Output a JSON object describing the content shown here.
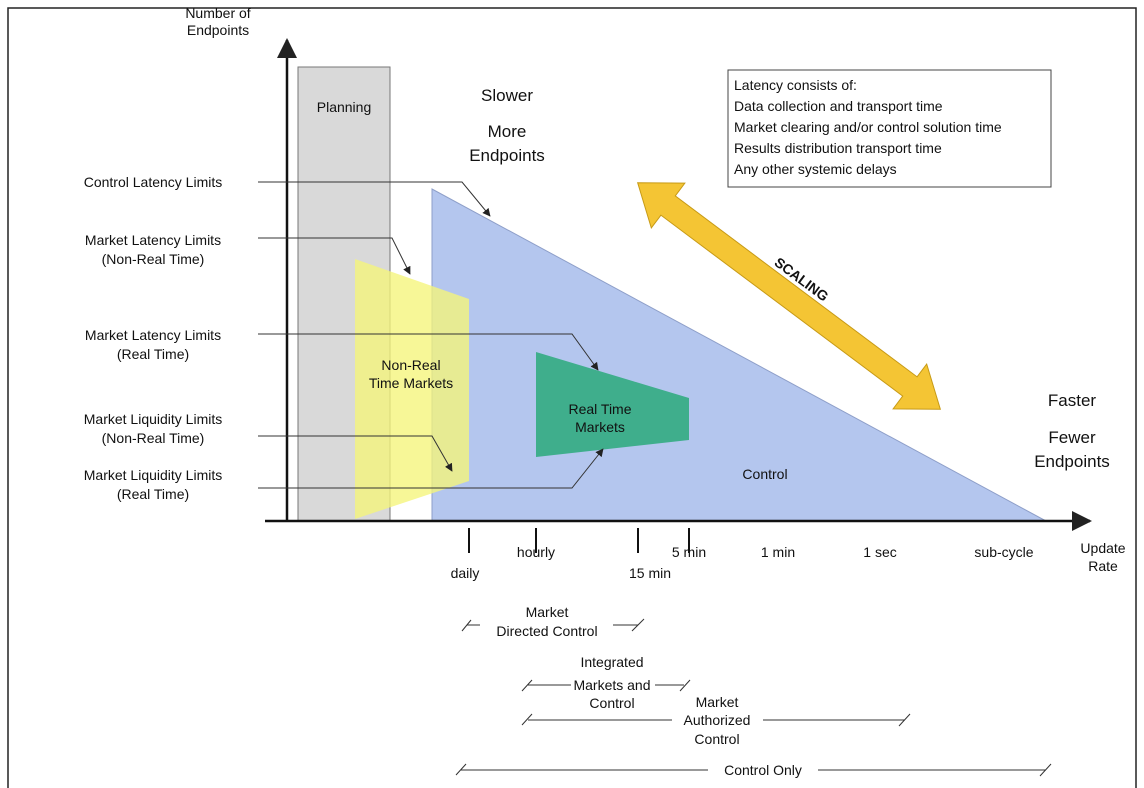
{
  "axes": {
    "y_label": [
      "Number of",
      "Endpoints"
    ],
    "x_label": [
      "Update",
      "Rate"
    ]
  },
  "planning": "Planning",
  "top_left": {
    "line1": "Slower",
    "line2": "More",
    "line3": "Endpoints"
  },
  "bottom_right": {
    "line1": "Faster",
    "line2": "Fewer",
    "line3": "Endpoints"
  },
  "scaling": "SCALING",
  "latency_box": {
    "title": "Latency consists of:",
    "items": [
      "Data collection and transport time",
      "Market clearing and/or control solution time",
      "Results distribution transport time",
      "Any other systemic delays"
    ]
  },
  "limits": {
    "control_latency": "Control Latency Limits",
    "market_latency_nrt": [
      "Market Latency Limits",
      "(Non-Real Time)"
    ],
    "market_latency_rt": [
      "Market Latency Limits",
      "(Real Time)"
    ],
    "market_liquidity_nrt": [
      "Market Liquidity Limits",
      "(Non-Real Time)"
    ],
    "market_liquidity_rt": [
      "Market Liquidity Limits",
      "(Real Time)"
    ]
  },
  "regions": {
    "non_real_time": [
      "Non-Real",
      "Time Markets"
    ],
    "real_time": [
      "Real Time",
      "Markets"
    ],
    "control": "Control"
  },
  "ticks": {
    "daily": "daily",
    "hourly": "hourly",
    "fifteen_min": "15 min",
    "five_min": "5 min",
    "one_min": "1 min",
    "one_sec": "1 sec",
    "sub_cycle": "sub-cycle"
  },
  "ranges": {
    "market_directed": [
      "Market",
      "Directed Control"
    ],
    "integrated": [
      "Integrated",
      "Markets and",
      "Control"
    ],
    "market_authorized": [
      "Market",
      "Authorized",
      "Control"
    ],
    "control_only": "Control Only"
  },
  "colors": {
    "planning_fill": "#d9d9d9",
    "control_fill": "#b4c6ee",
    "nrt_fill": "#f5f57a",
    "rt_fill": "#3fae8c",
    "arrow_fill": "#f4c534"
  }
}
